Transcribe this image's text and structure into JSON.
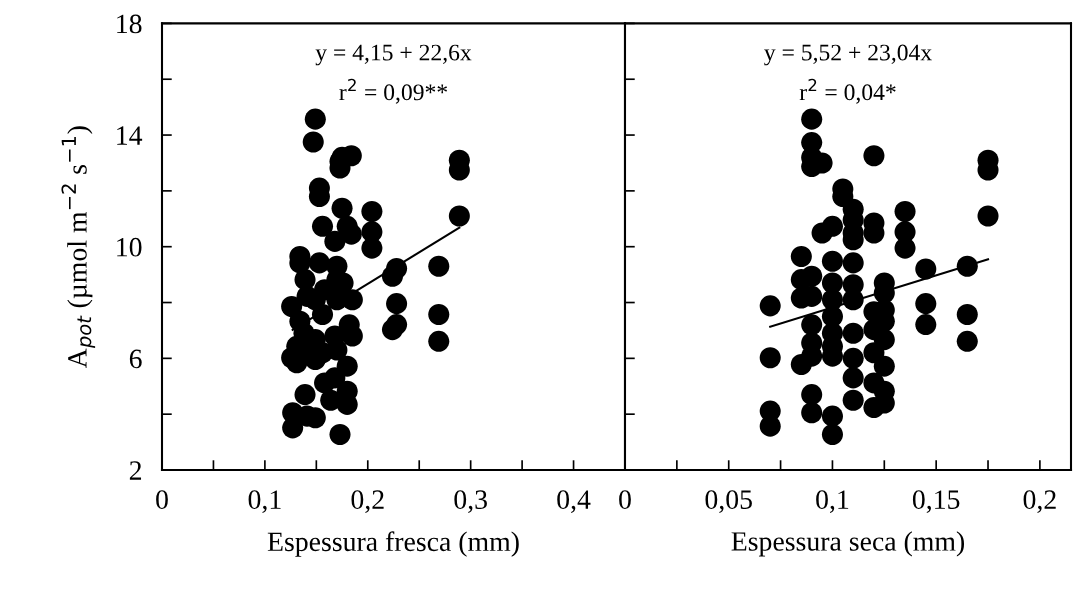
{
  "chart_data": [
    {
      "type": "scatter",
      "xlabel": "Espessura fresca (mm)",
      "ylabel": "A$_{pot}$ (µmol m$^{−2}$ s$^{−1}$)",
      "annotations": [
        "y = 4,15 + 22,6x",
        "r$^{2}$ = 0,09**"
      ],
      "xlim": [
        0,
        0.45
      ],
      "xticks": [
        0,
        {
          "value": 0.05,
          "label": null
        },
        {
          "value": 0.1,
          "label": "0,1"
        },
        {
          "value": 0.15,
          "label": null
        },
        {
          "value": 0.2,
          "label": "0,2"
        },
        {
          "value": 0.25,
          "label": null
        },
        {
          "value": 0.3,
          "label": "0,3"
        },
        {
          "value": 0.35,
          "label": null
        },
        {
          "value": 0.4,
          "label": "0,4"
        }
      ],
      "ylim": [
        2,
        18
      ],
      "yticks": [
        2,
        {
          "value": 4,
          "label": null
        },
        6,
        {
          "value": 8,
          "label": null
        },
        10,
        {
          "value": 12,
          "label": null
        },
        14,
        {
          "value": 16,
          "label": null
        },
        18
      ],
      "series": [
        {
          "color": "#000000",
          "marker": "circle",
          "x": [
            0.149,
            0.147,
            0.173,
            0.175,
            0.184,
            0.173,
            0.153,
            0.153,
            0.175,
            0.156,
            0.168,
            0.184,
            0.18,
            0.204,
            0.204,
            0.204,
            0.289,
            0.289,
            0.289,
            0.134,
            0.134,
            0.153,
            0.17,
            0.228,
            0.224,
            0.269,
            0.139,
            0.17,
            0.176,
            0.158,
            0.185,
            0.17,
            0.126,
            0.141,
            0.149,
            0.228,
            0.269,
            0.228,
            0.224,
            0.269,
            0.134,
            0.156,
            0.182,
            0.185,
            0.138,
            0.149,
            0.168,
            0.131,
            0.144,
            0.156,
            0.17,
            0.126,
            0.131,
            0.149,
            0.18,
            0.158,
            0.168,
            0.139,
            0.18,
            0.18,
            0.164,
            0.127,
            0.141,
            0.149,
            0.127,
            0.173
          ],
          "values": [
            14.57,
            13.75,
            13.05,
            13.2,
            13.26,
            12.82,
            12.1,
            11.8,
            11.38,
            10.73,
            10.19,
            10.45,
            10.73,
            11.26,
            10.53,
            9.95,
            13.1,
            12.75,
            11.1,
            9.65,
            9.42,
            9.42,
            9.3,
            9.22,
            8.94,
            9.3,
            8.82,
            8.82,
            8.7,
            8.46,
            8.1,
            8.1,
            7.86,
            8.22,
            8.1,
            7.96,
            7.57,
            7.21,
            7.03,
            6.61,
            7.33,
            7.57,
            7.2,
            6.8,
            6.9,
            6.67,
            6.8,
            6.43,
            6.2,
            6.2,
            6.3,
            6.02,
            5.84,
            5.96,
            5.72,
            5.12,
            5.3,
            4.7,
            4.82,
            4.35,
            4.5,
            4.05,
            3.93,
            3.87,
            3.51,
            3.27
          ]
        },
        {
          "type": "line",
          "marker": "none",
          "color": "#000000",
          "x": [
            0.127,
            0.289
          ],
          "values": [
            7.02,
            10.68
          ]
        }
      ]
    },
    {
      "type": "scatter",
      "xlabel": "Espessura seca (mm)",
      "annotations": [
        "y = 5,52 + 23,04x",
        "r$^{2}$ = 0,04*"
      ],
      "tick_labels": "x",
      "xlim": [
        0,
        0.215
      ],
      "xticks": [
        0,
        {
          "value": 0.025,
          "label": null
        },
        {
          "value": 0.05,
          "label": "0,05"
        },
        {
          "value": 0.075,
          "label": null
        },
        {
          "value": 0.1,
          "label": "0,1"
        },
        {
          "value": 0.125,
          "label": null
        },
        {
          "value": 0.15,
          "label": "0,15"
        },
        {
          "value": 0.175,
          "label": null
        },
        {
          "value": 0.2,
          "label": "0,2"
        }
      ],
      "ylim": [
        2,
        18
      ],
      "yticks": [
        2,
        {
          "value": 4,
          "label": null
        },
        6,
        {
          "value": 8,
          "label": null
        },
        10,
        {
          "value": 12,
          "label": null
        },
        14,
        {
          "value": 16,
          "label": null
        },
        18
      ],
      "series": [
        {
          "color": "#000000",
          "marker": "circle",
          "x": [
            0.09,
            0.09,
            0.09,
            0.09,
            0.095,
            0.12,
            0.175,
            0.175,
            0.175,
            0.105,
            0.105,
            0.11,
            0.11,
            0.11,
            0.11,
            0.1,
            0.095,
            0.12,
            0.12,
            0.135,
            0.135,
            0.135,
            0.085,
            0.1,
            0.11,
            0.145,
            0.165,
            0.085,
            0.09,
            0.1,
            0.11,
            0.125,
            0.125,
            0.085,
            0.09,
            0.1,
            0.11,
            0.07,
            0.145,
            0.12,
            0.125,
            0.1,
            0.09,
            0.1,
            0.12,
            0.125,
            0.145,
            0.165,
            0.11,
            0.125,
            0.09,
            0.1,
            0.165,
            0.07,
            0.085,
            0.09,
            0.1,
            0.11,
            0.12,
            0.125,
            0.11,
            0.12,
            0.09,
            0.125,
            0.125,
            0.11,
            0.12,
            0.09,
            0.07,
            0.1,
            0.07,
            0.1
          ],
          "values": [
            14.57,
            13.73,
            13.2,
            12.87,
            13.0,
            13.26,
            13.1,
            12.75,
            11.1,
            12.07,
            11.8,
            11.34,
            10.96,
            10.49,
            10.25,
            10.73,
            10.49,
            10.85,
            10.49,
            11.26,
            10.53,
            9.95,
            9.65,
            9.48,
            9.42,
            9.2,
            9.3,
            8.82,
            8.94,
            8.7,
            8.64,
            8.7,
            8.34,
            8.16,
            8.22,
            8.1,
            8.1,
            7.88,
            7.96,
            7.67,
            7.73,
            7.5,
            7.2,
            6.9,
            7.03,
            7.33,
            7.21,
            7.57,
            6.9,
            6.67,
            6.55,
            6.43,
            6.61,
            6.02,
            5.78,
            6.08,
            6.08,
            6.0,
            6.2,
            5.72,
            5.3,
            5.12,
            4.7,
            4.82,
            4.4,
            4.5,
            4.24,
            4.05,
            4.11,
            3.93,
            3.57,
            3.27
          ]
        },
        {
          "type": "line",
          "marker": "none",
          "color": "#000000",
          "x": [
            0.07,
            0.175
          ],
          "values": [
            7.13,
            9.55
          ]
        }
      ]
    }
  ]
}
